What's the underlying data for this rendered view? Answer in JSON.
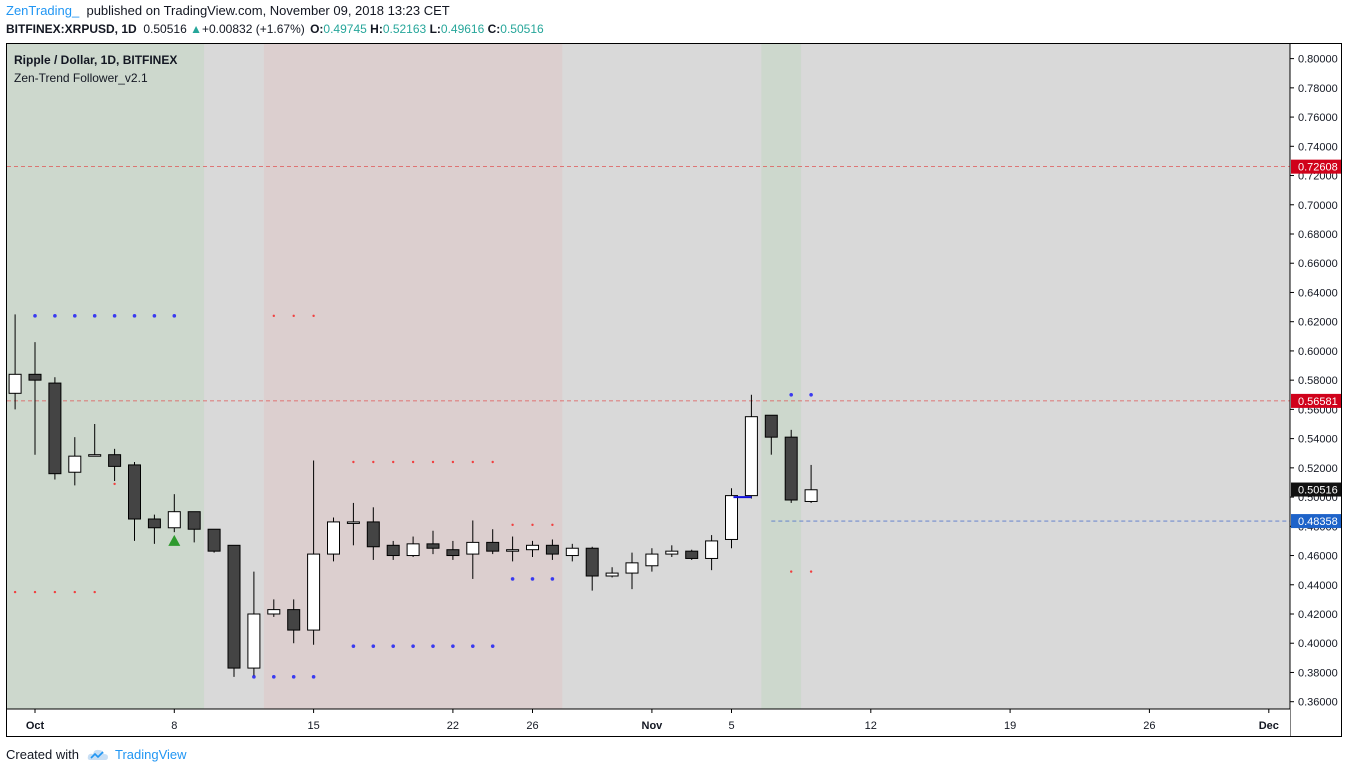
{
  "header": {
    "author": "ZenTrading_",
    "published": "published on TradingView.com, November 09, 2018 13:23 CET",
    "symbol": "BITFINEX:XRPUSD, 1D",
    "last": "0.50516",
    "change": "+0.00832 (+1.67%)",
    "o_label": "O:",
    "o": "0.49745",
    "h_label": "H:",
    "h": "0.52163",
    "l_label": "L:",
    "l": "0.49616",
    "c_label": "C:",
    "c": "0.50516"
  },
  "legend": {
    "series_title": "Ripple / Dollar, 1D, BITFINEX",
    "indicator": "Zen-Trend Follower_v2.1"
  },
  "footer": {
    "created_with": "Created with",
    "brand": "TradingView"
  },
  "colors": {
    "up_candle": "#ffffff",
    "down_candle": "#444444",
    "bg_neutral": "#d9d9d9",
    "bg_green": "#cdd8cd",
    "bg_red": "#dccfcf",
    "dot_blue": "#3a3af0",
    "dot_red": "#f04040",
    "line_red": "#e05555",
    "line_blue": "#5577cc",
    "label_red": "#d0021b",
    "label_blue": "#1e63c9",
    "label_black": "#111111"
  },
  "chart_data": {
    "type": "candlestick",
    "ylim": [
      0.355,
      0.81
    ],
    "x_tick_labels": [
      {
        "day": 0,
        "label": "Oct",
        "bold": true
      },
      {
        "day": 7,
        "label": "8",
        "bold": false
      },
      {
        "day": 14,
        "label": "15",
        "bold": false
      },
      {
        "day": 21,
        "label": "22",
        "bold": false
      },
      {
        "day": 25,
        "label": "26",
        "bold": false
      },
      {
        "day": 31,
        "label": "Nov",
        "bold": true
      },
      {
        "day": 35,
        "label": "5",
        "bold": false
      },
      {
        "day": 42,
        "label": "12",
        "bold": false
      },
      {
        "day": 49,
        "label": "19",
        "bold": false
      },
      {
        "day": 56,
        "label": "26",
        "bold": false
      },
      {
        "day": 62,
        "label": "Dec",
        "bold": true
      }
    ],
    "y_ticks": [
      "0.36000",
      "0.38000",
      "0.40000",
      "0.42000",
      "0.44000",
      "0.46000",
      "0.48000",
      "0.50000",
      "0.52000",
      "0.54000",
      "0.56000",
      "0.58000",
      "0.60000",
      "0.62000",
      "0.64000",
      "0.66000",
      "0.68000",
      "0.70000",
      "0.72000",
      "0.74000",
      "0.76000",
      "0.78000",
      "0.80000"
    ],
    "candles": [
      {
        "day": -1,
        "o": 0.571,
        "h": 0.625,
        "l": 0.56,
        "c": 0.584
      },
      {
        "day": 0,
        "o": 0.584,
        "h": 0.606,
        "l": 0.529,
        "c": 0.58
      },
      {
        "day": 1,
        "o": 0.578,
        "h": 0.582,
        "l": 0.512,
        "c": 0.516
      },
      {
        "day": 2,
        "o": 0.517,
        "h": 0.541,
        "l": 0.508,
        "c": 0.528
      },
      {
        "day": 3,
        "o": 0.529,
        "h": 0.55,
        "l": 0.528,
        "c": 0.529
      },
      {
        "day": 4,
        "o": 0.529,
        "h": 0.533,
        "l": 0.511,
        "c": 0.521
      },
      {
        "day": 5,
        "o": 0.522,
        "h": 0.524,
        "l": 0.47,
        "c": 0.485
      },
      {
        "day": 6,
        "o": 0.485,
        "h": 0.488,
        "l": 0.468,
        "c": 0.479
      },
      {
        "day": 7,
        "o": 0.479,
        "h": 0.502,
        "l": 0.476,
        "c": 0.49
      },
      {
        "day": 8,
        "o": 0.49,
        "h": 0.49,
        "l": 0.469,
        "c": 0.478
      },
      {
        "day": 9,
        "o": 0.478,
        "h": 0.478,
        "l": 0.462,
        "c": 0.463
      },
      {
        "day": 10,
        "o": 0.467,
        "h": 0.467,
        "l": 0.377,
        "c": 0.383
      },
      {
        "day": 11,
        "o": 0.383,
        "h": 0.449,
        "l": 0.378,
        "c": 0.42
      },
      {
        "day": 12,
        "o": 0.42,
        "h": 0.43,
        "l": 0.418,
        "c": 0.423
      },
      {
        "day": 13,
        "o": 0.423,
        "h": 0.43,
        "l": 0.4,
        "c": 0.409
      },
      {
        "day": 14,
        "o": 0.409,
        "h": 0.525,
        "l": 0.399,
        "c": 0.461
      },
      {
        "day": 15,
        "o": 0.461,
        "h": 0.486,
        "l": 0.456,
        "c": 0.483
      },
      {
        "day": 16,
        "o": 0.482,
        "h": 0.496,
        "l": 0.467,
        "c": 0.483
      },
      {
        "day": 17,
        "o": 0.483,
        "h": 0.493,
        "l": 0.457,
        "c": 0.466
      },
      {
        "day": 18,
        "o": 0.467,
        "h": 0.47,
        "l": 0.457,
        "c": 0.46
      },
      {
        "day": 19,
        "o": 0.46,
        "h": 0.473,
        "l": 0.459,
        "c": 0.468
      },
      {
        "day": 20,
        "o": 0.468,
        "h": 0.477,
        "l": 0.461,
        "c": 0.465
      },
      {
        "day": 21,
        "o": 0.464,
        "h": 0.47,
        "l": 0.457,
        "c": 0.46
      },
      {
        "day": 22,
        "o": 0.461,
        "h": 0.484,
        "l": 0.444,
        "c": 0.469
      },
      {
        "day": 23,
        "o": 0.469,
        "h": 0.478,
        "l": 0.461,
        "c": 0.463
      },
      {
        "day": 24,
        "o": 0.463,
        "h": 0.473,
        "l": 0.456,
        "c": 0.464
      },
      {
        "day": 25,
        "o": 0.464,
        "h": 0.47,
        "l": 0.459,
        "c": 0.467
      },
      {
        "day": 26,
        "o": 0.467,
        "h": 0.471,
        "l": 0.457,
        "c": 0.461
      },
      {
        "day": 27,
        "o": 0.46,
        "h": 0.468,
        "l": 0.456,
        "c": 0.465
      },
      {
        "day": 28,
        "o": 0.465,
        "h": 0.466,
        "l": 0.436,
        "c": 0.446
      },
      {
        "day": 29,
        "o": 0.446,
        "h": 0.452,
        "l": 0.445,
        "c": 0.448
      },
      {
        "day": 30,
        "o": 0.448,
        "h": 0.462,
        "l": 0.437,
        "c": 0.455
      },
      {
        "day": 31,
        "o": 0.453,
        "h": 0.465,
        "l": 0.449,
        "c": 0.461
      },
      {
        "day": 32,
        "o": 0.461,
        "h": 0.467,
        "l": 0.459,
        "c": 0.463
      },
      {
        "day": 33,
        "o": 0.463,
        "h": 0.464,
        "l": 0.457,
        "c": 0.458
      },
      {
        "day": 34,
        "o": 0.458,
        "h": 0.474,
        "l": 0.45,
        "c": 0.47
      },
      {
        "day": 35,
        "o": 0.471,
        "h": 0.506,
        "l": 0.465,
        "c": 0.501
      },
      {
        "day": 36,
        "o": 0.501,
        "h": 0.57,
        "l": 0.499,
        "c": 0.555
      },
      {
        "day": 37,
        "o": 0.556,
        "h": 0.556,
        "l": 0.529,
        "c": 0.541
      },
      {
        "day": 38,
        "o": 0.541,
        "h": 0.546,
        "l": 0.496,
        "c": 0.498
      },
      {
        "day": 39,
        "o": 0.497,
        "h": 0.522,
        "l": 0.496,
        "c": 0.505
      }
    ],
    "background_zones": [
      {
        "from": -1.4,
        "to": 8.5,
        "color": "green"
      },
      {
        "from": 8.5,
        "to": 11.5,
        "color": "neutral"
      },
      {
        "from": 11.5,
        "to": 26.5,
        "color": "red"
      },
      {
        "from": 26.5,
        "to": 36.5,
        "color": "neutral"
      },
      {
        "from": 36.5,
        "to": 38.5,
        "color": "green"
      },
      {
        "from": 38.5,
        "to": 65,
        "color": "neutral"
      }
    ],
    "dot_series": [
      {
        "color": "blue",
        "y": 0.624,
        "days": [
          0,
          1,
          2,
          3,
          4,
          5,
          6,
          7
        ]
      },
      {
        "color": "red",
        "y": 0.624,
        "days": [
          12,
          13,
          14
        ]
      },
      {
        "color": "red",
        "y": 0.435,
        "days": [
          -1,
          0,
          1,
          2,
          3
        ]
      },
      {
        "color": "red",
        "y": 0.524,
        "days": [
          16,
          17,
          18,
          19,
          20,
          21,
          22,
          23
        ]
      },
      {
        "color": "red",
        "y": 0.481,
        "days": [
          24,
          25,
          26
        ]
      },
      {
        "color": "blue",
        "y": 0.444,
        "days": [
          24,
          25,
          26
        ]
      },
      {
        "color": "blue",
        "y": 0.398,
        "days": [
          16,
          17,
          18,
          19,
          20,
          21,
          22,
          23
        ]
      },
      {
        "color": "blue",
        "y": 0.377,
        "days": [
          11,
          12,
          13,
          14
        ]
      },
      {
        "color": "blue",
        "y": 0.57,
        "days": [
          38,
          39
        ]
      },
      {
        "color": "red",
        "y": 0.449,
        "days": [
          38,
          39
        ]
      },
      {
        "color": "red",
        "y": 0.509,
        "days": [
          4
        ]
      }
    ],
    "markers": [
      {
        "type": "triangle-up",
        "day": 7,
        "y": 0.47,
        "color": "#2e9a2e"
      },
      {
        "type": "blue-tick",
        "day": 35.4,
        "y": 0.5,
        "color": "#1010dd"
      }
    ],
    "price_lines": [
      {
        "value": 0.72608,
        "label": "0.72608",
        "color": "red"
      },
      {
        "value": 0.56581,
        "label": "0.56581",
        "color": "red"
      },
      {
        "value": 0.48358,
        "label": "0.48358",
        "color": "blue",
        "from_day": 37
      },
      {
        "value": 0.50516,
        "label": "0.50516",
        "color": "black",
        "line": false
      }
    ]
  }
}
